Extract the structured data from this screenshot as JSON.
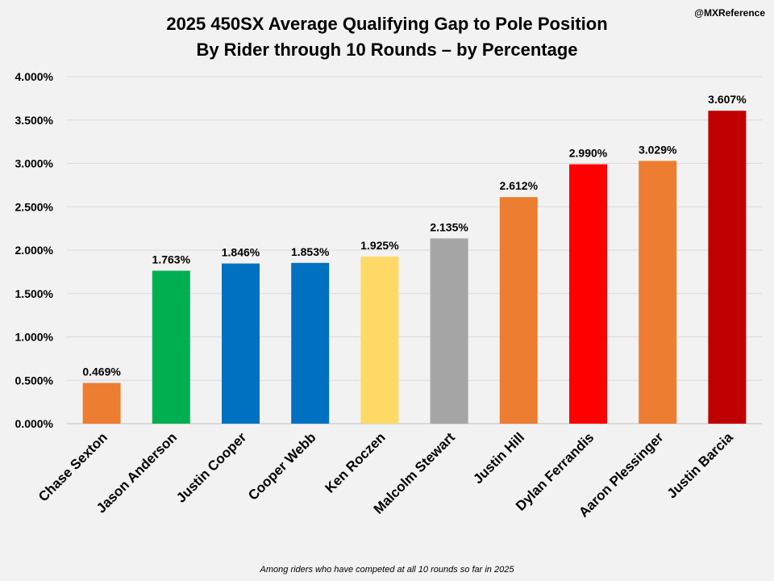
{
  "chart_data": {
    "type": "bar",
    "title": [
      "2025 450SX Average Qualifying Gap to Pole Position",
      "By Rider through 10 Rounds – by Percentage"
    ],
    "source_handle": "@MXReference",
    "footnote": "Among riders who have competed at all 10 rounds so far in 2025",
    "xlabel": "",
    "ylabel": "",
    "ylim": [
      0,
      4
    ],
    "yticks": [
      0,
      0.5,
      1,
      1.5,
      2,
      2.5,
      3,
      3.5,
      4
    ],
    "ytick_labels": [
      "0.000%",
      "0.500%",
      "1.000%",
      "1.500%",
      "2.000%",
      "2.500%",
      "3.000%",
      "3.500%",
      "4.000%"
    ],
    "grid": true,
    "categories": [
      "Chase Sexton",
      "Jason Anderson",
      "Justin Cooper",
      "Cooper Webb",
      "Ken Roczen",
      "Malcolm Stewart",
      "Justin Hill",
      "Dylan Ferrandis",
      "Aaron Plessinger",
      "Justin Barcia"
    ],
    "values": [
      0.469,
      1.763,
      1.846,
      1.853,
      1.925,
      2.135,
      2.612,
      2.99,
      3.029,
      3.607
    ],
    "value_labels": [
      "0.469%",
      "1.763%",
      "1.846%",
      "1.853%",
      "1.925%",
      "2.135%",
      "2.612%",
      "2.990%",
      "3.029%",
      "3.607%"
    ],
    "colors": [
      "#ED7D31",
      "#00B050",
      "#0070C0",
      "#0070C0",
      "#FFD966",
      "#A5A5A5",
      "#ED7D31",
      "#FF0000",
      "#ED7D31",
      "#C00000"
    ]
  }
}
